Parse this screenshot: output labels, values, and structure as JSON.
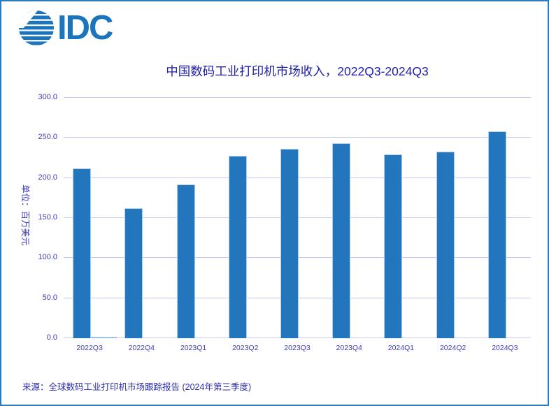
{
  "logo": {
    "text": "IDC"
  },
  "source_note": "来源：全球数码工业打印机市场跟踪报告 (2024年第三季度)",
  "colors": {
    "logo_blue": "#1B75BC",
    "page_border": "#2E79BE",
    "title_text": "#2121A8",
    "axis_text": "#3B3BC4",
    "source_text": "#2C2CB0",
    "gridline": "#C9C7F3",
    "bar_primary": "#2376BC",
    "bar_primary_edge": "#ADCDEB",
    "bar_secondary": "#9CC3E5"
  },
  "chart_data": {
    "type": "bar",
    "title": "中国数码工业打印机市场收入，2022Q3-2024Q3",
    "ylabel": "单位：百万美元",
    "categories": [
      "2022Q3",
      "2022Q4",
      "2023Q1",
      "2023Q2",
      "2023Q3",
      "2023Q4",
      "2024Q1",
      "2024Q2",
      "2024Q3"
    ],
    "series": [
      {
        "name": "series-1",
        "color": "#2376BC",
        "values": [
          212,
          162,
          192,
          228,
          236,
          243,
          229,
          233,
          258
        ]
      },
      {
        "name": "series-2",
        "color": "#9CC3E5",
        "values": [
          2,
          0,
          0,
          0,
          0,
          0,
          0,
          0,
          0
        ]
      }
    ],
    "ylim": [
      0,
      300
    ],
    "yticks": [
      0,
      50,
      100,
      150,
      200,
      250,
      300
    ],
    "ytick_labels": [
      "0.0",
      "50.0",
      "100.0",
      "150.0",
      "200.0",
      "250.0",
      "300.0"
    ],
    "grid": true,
    "legend": "none"
  }
}
